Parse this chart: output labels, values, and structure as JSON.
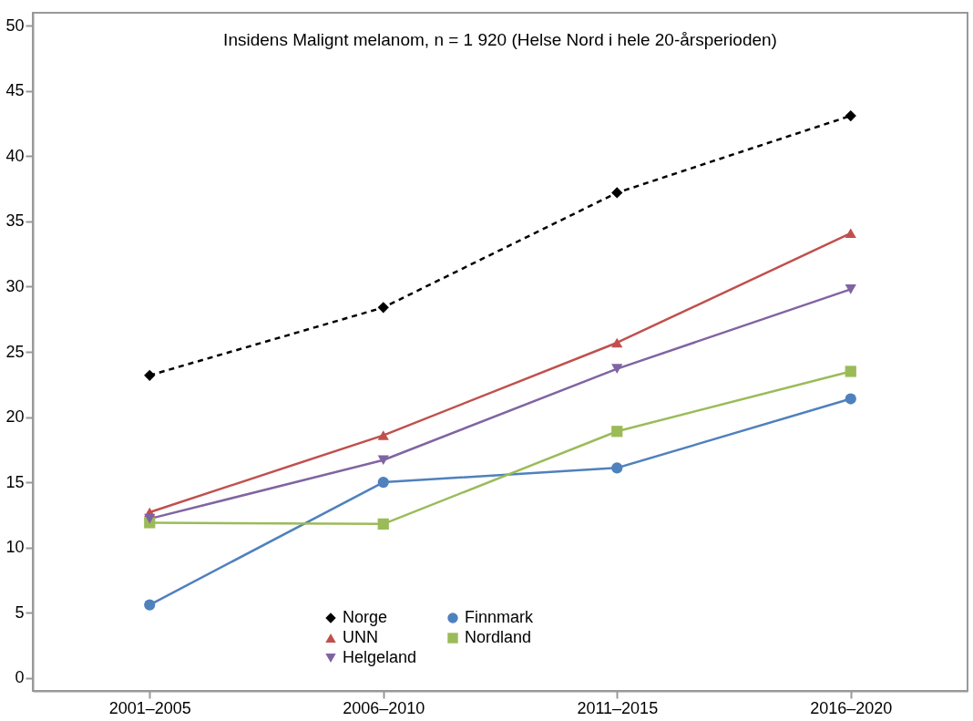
{
  "chart_data": {
    "type": "line",
    "title": "Insidens Malignt melanom, n = 1 920 (Helse Nord i hele 20-årsperioden)",
    "categories": [
      "2001–2005",
      "2006–2010",
      "2011–2015",
      "2016–2020"
    ],
    "series": [
      {
        "name": "Norge",
        "color": "#000000",
        "marker": "diamond",
        "line_style": "dashed",
        "values": [
          23.2,
          28.4,
          37.2,
          43.1
        ]
      },
      {
        "name": "UNN",
        "color": "#c0504d",
        "marker": "triangle",
        "line_style": "solid",
        "values": [
          12.7,
          18.6,
          25.7,
          34.1
        ]
      },
      {
        "name": "Helgeland",
        "color": "#8064a2",
        "marker": "triangle-down",
        "line_style": "solid",
        "values": [
          12.2,
          16.7,
          23.7,
          29.8
        ]
      },
      {
        "name": "Finnmark",
        "color": "#4f81bd",
        "marker": "circle",
        "line_style": "solid",
        "values": [
          5.6,
          15.0,
          16.1,
          21.4
        ]
      },
      {
        "name": "Nordland",
        "color": "#9bbb59",
        "marker": "square",
        "line_style": "solid",
        "values": [
          11.9,
          11.8,
          18.9,
          23.5
        ]
      }
    ],
    "ylim": [
      -1,
      51
    ],
    "yticks": [
      0,
      5,
      10,
      15,
      20,
      25,
      30,
      35,
      40,
      45,
      50
    ],
    "grid": false,
    "legend": "bottom"
  }
}
